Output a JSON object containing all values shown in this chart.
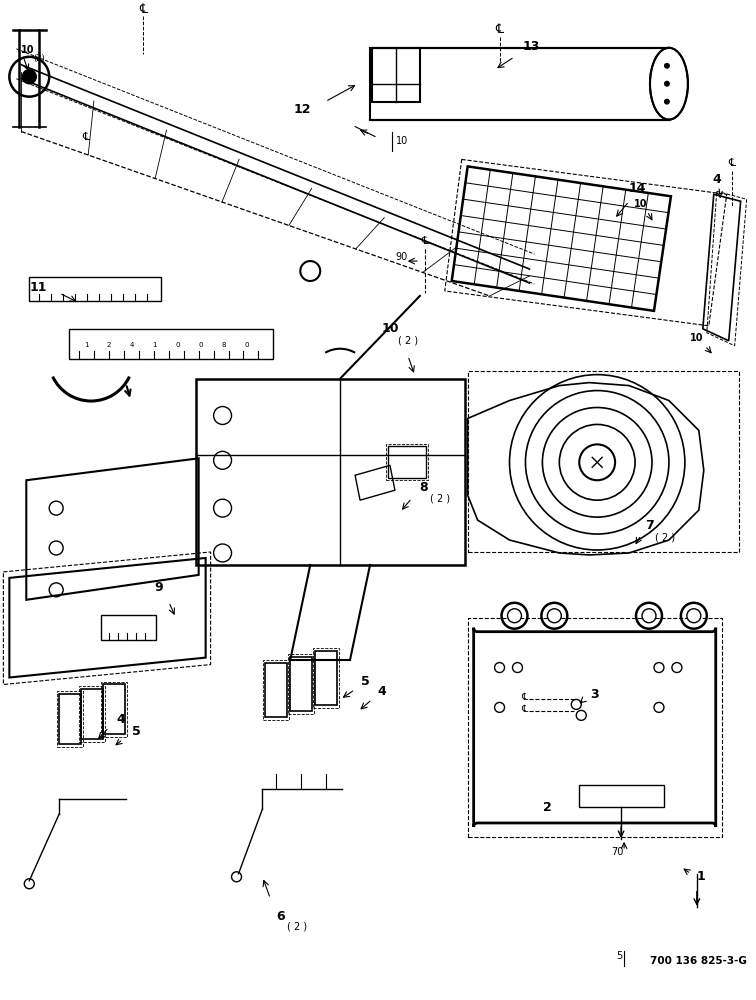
{
  "title": "",
  "background_color": "#ffffff",
  "bottom_text": "700 136 825-3-G",
  "text_color": "#000000",
  "line_color": "#000000",
  "fig_width": 7.56,
  "fig_height": 10.0,
  "dpi": 100
}
